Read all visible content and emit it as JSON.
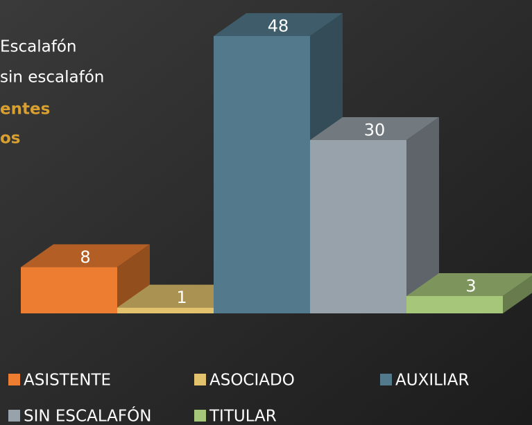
{
  "chart_data": {
    "type": "bar3d",
    "annotations": [
      "Escalafón",
      "sin escalafón",
      "entes",
      "os"
    ],
    "categories": [
      "ASISTENTE",
      "ASOCIADO",
      "AUXILIAR",
      "SIN ESCALAFÓN",
      "TITULAR"
    ],
    "values": [
      8,
      1,
      48,
      30,
      3
    ],
    "colors": [
      "#ed7d31",
      "#e3c26e",
      "#537a8c",
      "#98a2ab",
      "#a6c67a"
    ]
  }
}
